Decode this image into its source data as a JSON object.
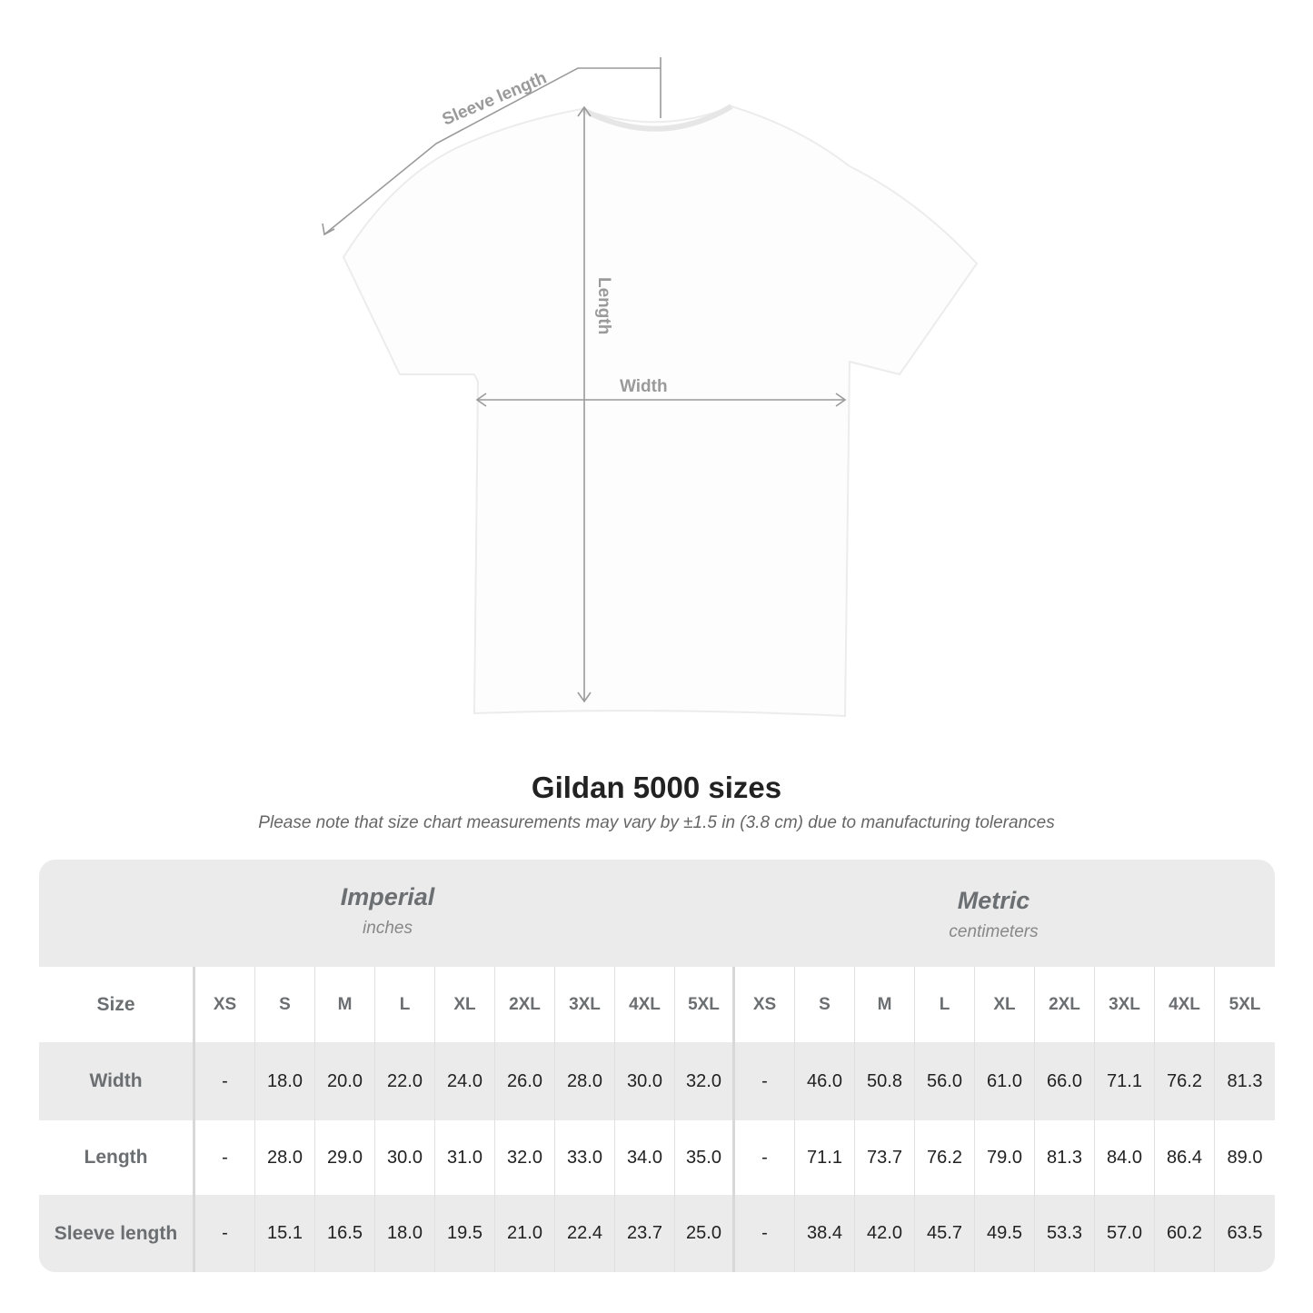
{
  "diagram": {
    "labels": {
      "sleeve": "Sleeve length",
      "length": "Length",
      "width": "Width"
    },
    "line_color": "#9a9a9a"
  },
  "header": {
    "title": "Gildan 5000 sizes",
    "note": "Please note that size chart measurements may vary by ±1.5 in (3.8 cm) due to manufacturing tolerances"
  },
  "table": {
    "imperial": {
      "name": "Imperial",
      "unit": "inches"
    },
    "metric": {
      "name": "Metric",
      "unit": "centimeters"
    },
    "size_label": "Size",
    "sizes": [
      "XS",
      "S",
      "M",
      "L",
      "XL",
      "2XL",
      "3XL",
      "4XL",
      "5XL"
    ],
    "rows": [
      {
        "label": "Width",
        "imperial": [
          "-",
          "18.0",
          "20.0",
          "22.0",
          "24.0",
          "26.0",
          "28.0",
          "30.0",
          "32.0"
        ],
        "metric": [
          "-",
          "46.0",
          "50.8",
          "56.0",
          "61.0",
          "66.0",
          "71.1",
          "76.2",
          "81.3"
        ]
      },
      {
        "label": "Length",
        "imperial": [
          "-",
          "28.0",
          "29.0",
          "30.0",
          "31.0",
          "32.0",
          "33.0",
          "34.0",
          "35.0"
        ],
        "metric": [
          "-",
          "71.1",
          "73.7",
          "76.2",
          "79.0",
          "81.3",
          "84.0",
          "86.4",
          "89.0"
        ]
      },
      {
        "label": "Sleeve length",
        "imperial": [
          "-",
          "15.1",
          "16.5",
          "18.0",
          "19.5",
          "21.0",
          "22.4",
          "23.7",
          "25.0"
        ],
        "metric": [
          "-",
          "38.4",
          "42.0",
          "45.7",
          "49.5",
          "53.3",
          "57.0",
          "60.2",
          "63.5"
        ]
      }
    ]
  }
}
